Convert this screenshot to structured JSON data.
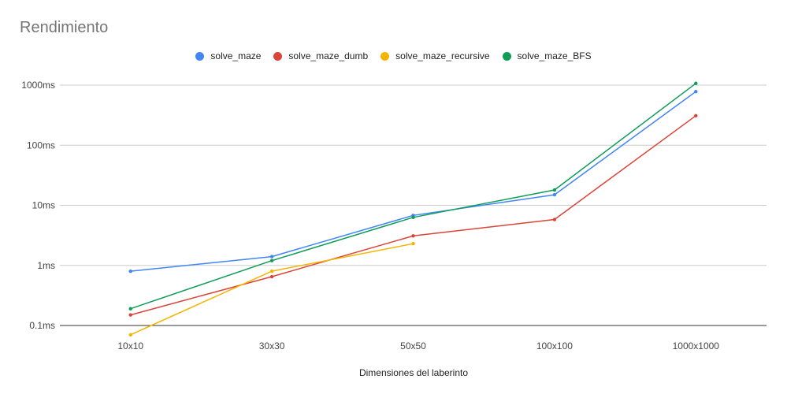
{
  "chart_data": {
    "type": "line",
    "title": "Rendimiento",
    "xlabel": "Dimensiones del laberinto",
    "ylabel": "",
    "yscale": "log",
    "ylim": [
      0.1,
      1000
    ],
    "y_ticks": [
      {
        "value": 0.1,
        "label": "0.1ms"
      },
      {
        "value": 1,
        "label": "1ms"
      },
      {
        "value": 10,
        "label": "10ms"
      },
      {
        "value": 100,
        "label": "100ms"
      },
      {
        "value": 1000,
        "label": "1000ms"
      }
    ],
    "categories": [
      "10x10",
      "30x30",
      "50x50",
      "100x100",
      "1000x1000"
    ],
    "grid": true,
    "legend_position": "top",
    "series": [
      {
        "name": "solve_maze",
        "color": "#4285f4",
        "values": [
          0.8,
          1.4,
          6.8,
          15,
          780
        ]
      },
      {
        "name": "solve_maze_dumb",
        "color": "#db4437",
        "values": [
          0.15,
          0.65,
          3.1,
          5.8,
          310
        ]
      },
      {
        "name": "solve_maze_recursive",
        "color": "#f4b400",
        "values": [
          0.07,
          0.8,
          2.3,
          null,
          null
        ]
      },
      {
        "name": "solve_maze_BFS",
        "color": "#0f9d58",
        "values": [
          0.19,
          1.2,
          6.3,
          18,
          1070
        ]
      }
    ]
  }
}
